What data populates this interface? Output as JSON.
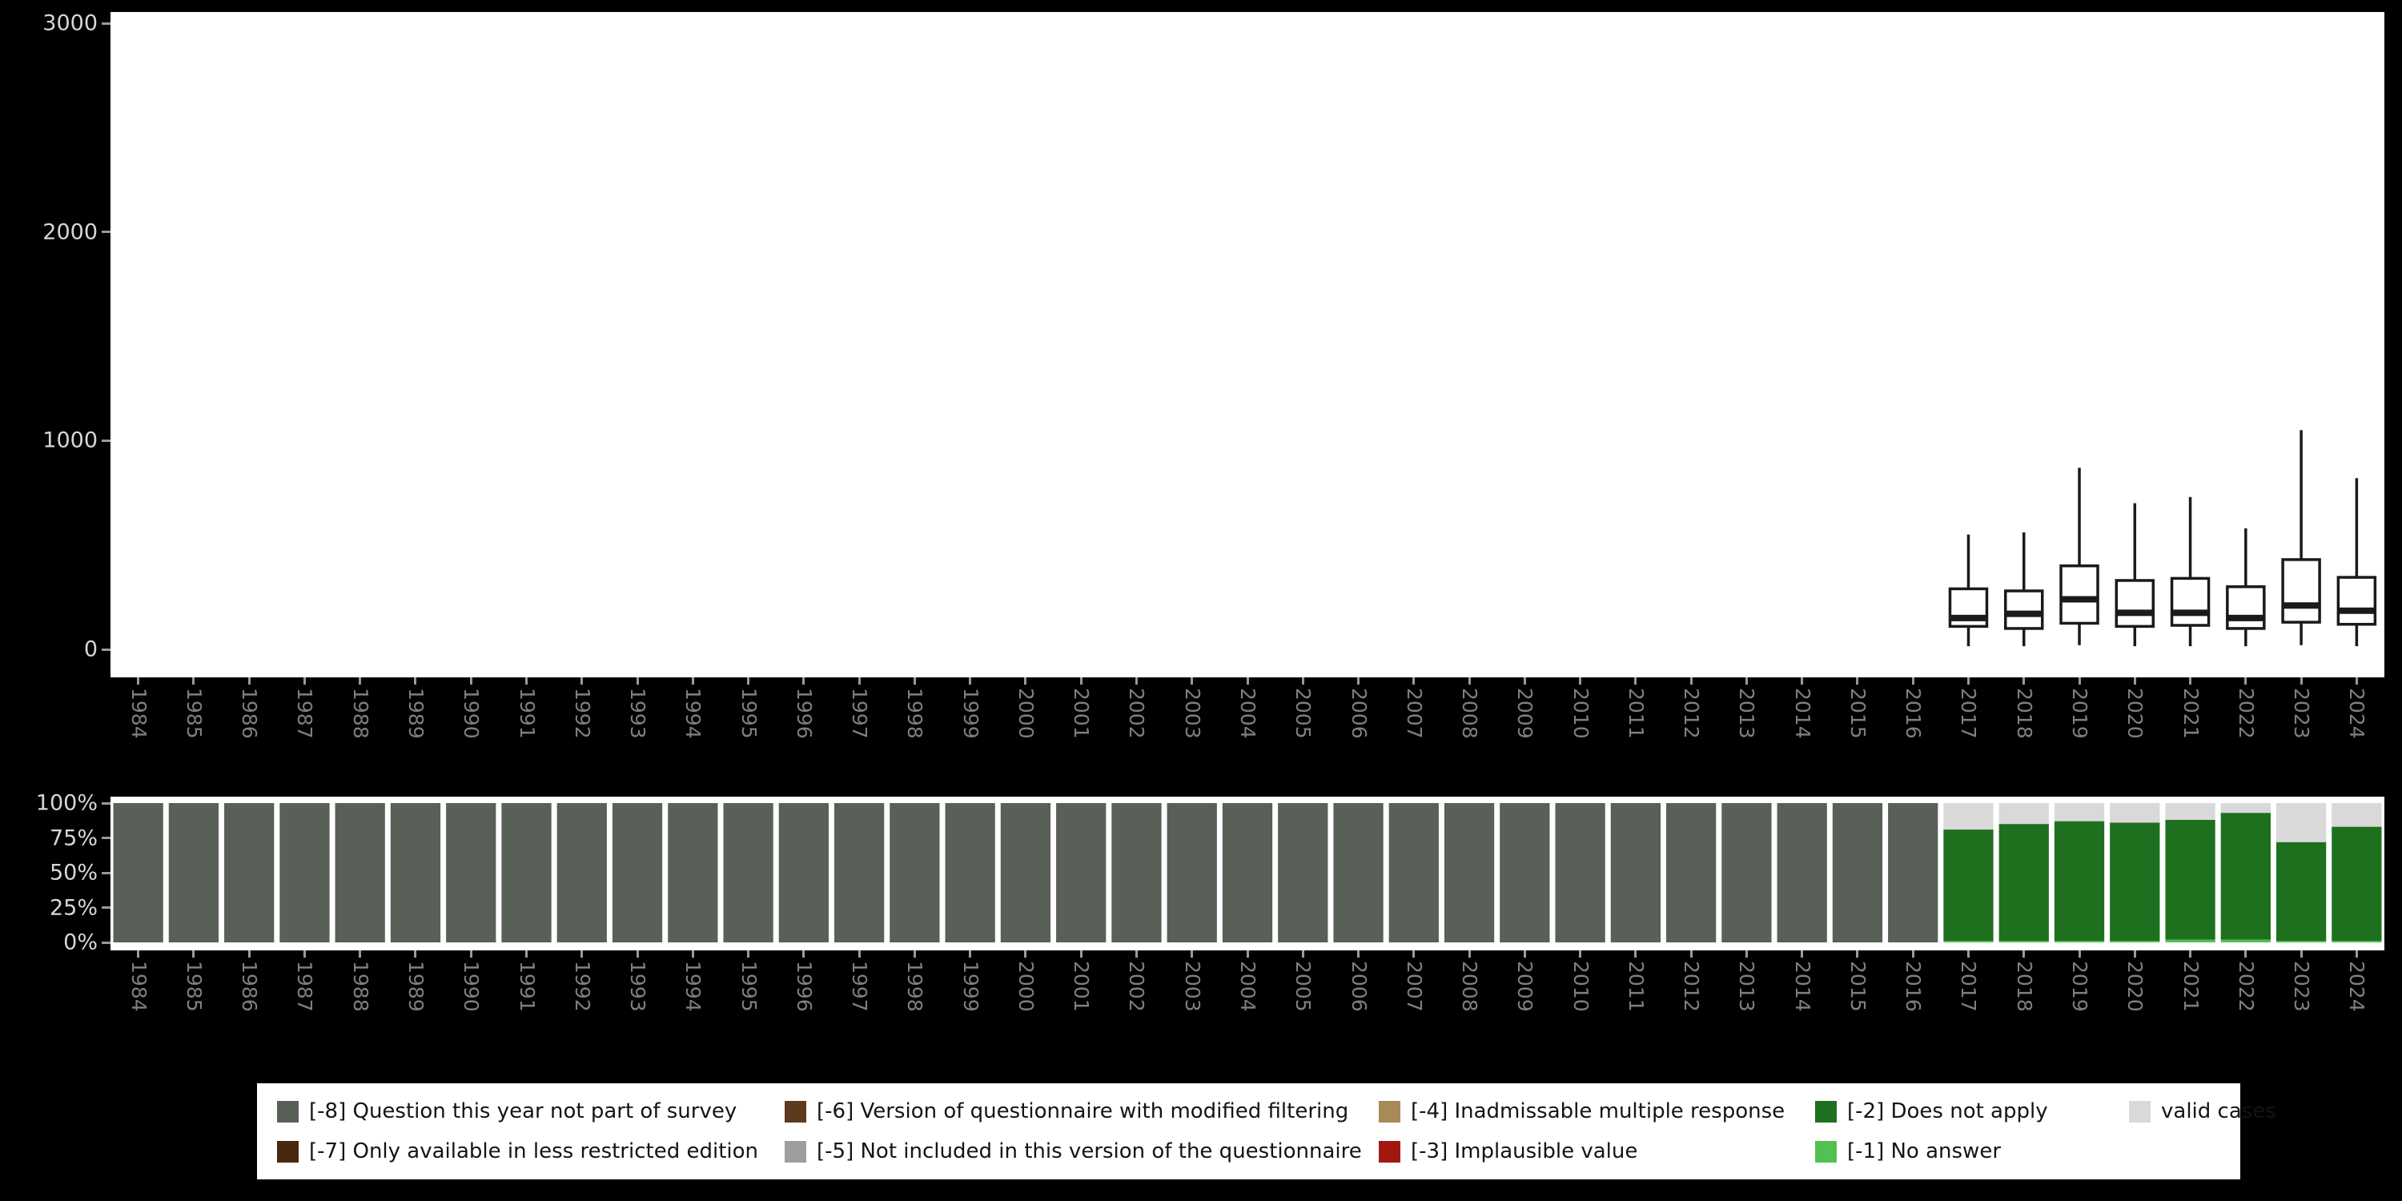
{
  "colors": {
    "-8": "#586058",
    "-7": "#47290f",
    "-6": "#5b3a1e",
    "-5": "#9e9e9e",
    "-4": "#a88a58",
    "-3": "#a21811",
    "-2": "#1e701e",
    "-1": "#52c152",
    "valid": "#d9d9d9"
  },
  "axis": {
    "tick_color": "#9a9a9a",
    "value_label_color": "#d6d6d6",
    "year_label_color": "#7f7f7f"
  },
  "chart_data": [
    {
      "type": "boxplot",
      "title": "",
      "xlabel": "",
      "ylabel": "",
      "ylim": [
        0,
        3000
      ],
      "grid": false,
      "yticks": [
        {
          "v": 0,
          "label": "0"
        },
        {
          "v": 1000,
          "label": "1000"
        },
        {
          "v": 2000,
          "label": "2000"
        },
        {
          "v": 3000,
          "label": "3000"
        }
      ],
      "x": [
        "1984",
        "1985",
        "1986",
        "1987",
        "1988",
        "1989",
        "1990",
        "1991",
        "1992",
        "1993",
        "1994",
        "1995",
        "1996",
        "1997",
        "1998",
        "1999",
        "2000",
        "2001",
        "2002",
        "2003",
        "2004",
        "2005",
        "2006",
        "2007",
        "2008",
        "2009",
        "2010",
        "2011",
        "2012",
        "2013",
        "2014",
        "2015",
        "2016",
        "2017",
        "2018",
        "2019",
        "2020",
        "2021",
        "2022",
        "2023",
        "2024"
      ],
      "boxes": [
        {
          "year": "2017",
          "min": 15,
          "q1": 110,
          "median": 150,
          "q3": 290,
          "max": 550
        },
        {
          "year": "2018",
          "min": 15,
          "q1": 100,
          "median": 170,
          "q3": 280,
          "max": 560
        },
        {
          "year": "2019",
          "min": 20,
          "q1": 125,
          "median": 240,
          "q3": 400,
          "max": 870
        },
        {
          "year": "2020",
          "min": 15,
          "q1": 110,
          "median": 175,
          "q3": 330,
          "max": 700
        },
        {
          "year": "2021",
          "min": 15,
          "q1": 115,
          "median": 175,
          "q3": 340,
          "max": 730
        },
        {
          "year": "2022",
          "min": 15,
          "q1": 100,
          "median": 150,
          "q3": 300,
          "max": 580
        },
        {
          "year": "2023",
          "min": 20,
          "q1": 130,
          "median": 210,
          "q3": 430,
          "max": 1050
        },
        {
          "year": "2024",
          "min": 15,
          "q1": 120,
          "median": 185,
          "q3": 345,
          "max": 820
        }
      ]
    },
    {
      "type": "bar",
      "stacked_percent": true,
      "title": "",
      "xlabel": "",
      "ylabel": "",
      "stack_order": [
        "-1",
        "-2",
        "-8",
        "valid"
      ],
      "yticks": [
        {
          "v": 0,
          "label": "0%"
        },
        {
          "v": 25,
          "label": "25%"
        },
        {
          "v": 50,
          "label": "50%"
        },
        {
          "v": 75,
          "label": "75%"
        },
        {
          "v": 100,
          "label": "100%"
        }
      ],
      "x": [
        "1984",
        "1985",
        "1986",
        "1987",
        "1988",
        "1989",
        "1990",
        "1991",
        "1992",
        "1993",
        "1994",
        "1995",
        "1996",
        "1997",
        "1998",
        "1999",
        "2000",
        "2001",
        "2002",
        "2003",
        "2004",
        "2005",
        "2006",
        "2007",
        "2008",
        "2009",
        "2010",
        "2011",
        "2012",
        "2013",
        "2014",
        "2015",
        "2016",
        "2017",
        "2018",
        "2019",
        "2020",
        "2021",
        "2022",
        "2023",
        "2024"
      ],
      "bars": [
        {
          "year": "1984",
          "segments": {
            "-8": 100
          }
        },
        {
          "year": "1985",
          "segments": {
            "-8": 100
          }
        },
        {
          "year": "1986",
          "segments": {
            "-8": 100
          }
        },
        {
          "year": "1987",
          "segments": {
            "-8": 100
          }
        },
        {
          "year": "1988",
          "segments": {
            "-8": 100
          }
        },
        {
          "year": "1989",
          "segments": {
            "-8": 100
          }
        },
        {
          "year": "1990",
          "segments": {
            "-8": 100
          }
        },
        {
          "year": "1991",
          "segments": {
            "-8": 100
          }
        },
        {
          "year": "1992",
          "segments": {
            "-8": 100
          }
        },
        {
          "year": "1993",
          "segments": {
            "-8": 100
          }
        },
        {
          "year": "1994",
          "segments": {
            "-8": 100
          }
        },
        {
          "year": "1995",
          "segments": {
            "-8": 100
          }
        },
        {
          "year": "1996",
          "segments": {
            "-8": 100
          }
        },
        {
          "year": "1997",
          "segments": {
            "-8": 100
          }
        },
        {
          "year": "1998",
          "segments": {
            "-8": 100
          }
        },
        {
          "year": "1999",
          "segments": {
            "-8": 100
          }
        },
        {
          "year": "2000",
          "segments": {
            "-8": 100
          }
        },
        {
          "year": "2001",
          "segments": {
            "-8": 100
          }
        },
        {
          "year": "2002",
          "segments": {
            "-8": 100
          }
        },
        {
          "year": "2003",
          "segments": {
            "-8": 100
          }
        },
        {
          "year": "2004",
          "segments": {
            "-8": 100
          }
        },
        {
          "year": "2005",
          "segments": {
            "-8": 100
          }
        },
        {
          "year": "2006",
          "segments": {
            "-8": 100
          }
        },
        {
          "year": "2007",
          "segments": {
            "-8": 100
          }
        },
        {
          "year": "2008",
          "segments": {
            "-8": 100
          }
        },
        {
          "year": "2009",
          "segments": {
            "-8": 100
          }
        },
        {
          "year": "2010",
          "segments": {
            "-8": 100
          }
        },
        {
          "year": "2011",
          "segments": {
            "-8": 100
          }
        },
        {
          "year": "2012",
          "segments": {
            "-8": 100
          }
        },
        {
          "year": "2013",
          "segments": {
            "-8": 100
          }
        },
        {
          "year": "2014",
          "segments": {
            "-8": 100
          }
        },
        {
          "year": "2015",
          "segments": {
            "-8": 100
          }
        },
        {
          "year": "2016",
          "segments": {
            "-8": 100
          }
        },
        {
          "year": "2017",
          "segments": {
            "-1": 1,
            "-2": 80,
            "valid": 19
          }
        },
        {
          "year": "2018",
          "segments": {
            "-1": 1,
            "-2": 84,
            "valid": 15
          }
        },
        {
          "year": "2019",
          "segments": {
            "-1": 1,
            "-2": 86,
            "valid": 13
          }
        },
        {
          "year": "2020",
          "segments": {
            "-1": 1,
            "-2": 85,
            "valid": 14
          }
        },
        {
          "year": "2021",
          "segments": {
            "-1": 2,
            "-2": 86,
            "valid": 12
          }
        },
        {
          "year": "2022",
          "segments": {
            "-1": 2,
            "-2": 91,
            "valid": 7
          }
        },
        {
          "year": "2023",
          "segments": {
            "-1": 1,
            "-2": 71,
            "valid": 28
          }
        },
        {
          "year": "2024",
          "segments": {
            "-1": 1,
            "-2": 82,
            "valid": 17
          }
        }
      ]
    }
  ],
  "legend": {
    "items": [
      {
        "key": "-8",
        "label": "[-8] Question this year not part of survey"
      },
      {
        "key": "-6",
        "label": "[-6] Version of questionnaire with modified filtering"
      },
      {
        "key": "-4",
        "label": "[-4] Inadmissable multiple response"
      },
      {
        "key": "-2",
        "label": "[-2] Does not apply"
      },
      {
        "key": "valid",
        "label": "valid cases"
      },
      {
        "key": "-7",
        "label": "[-7] Only available in less restricted edition"
      },
      {
        "key": "-5",
        "label": "[-5] Not included in this version of the questionnaire"
      },
      {
        "key": "-3",
        "label": "[-3] Implausible value"
      },
      {
        "key": "-1",
        "label": "[-1] No answer"
      }
    ]
  }
}
